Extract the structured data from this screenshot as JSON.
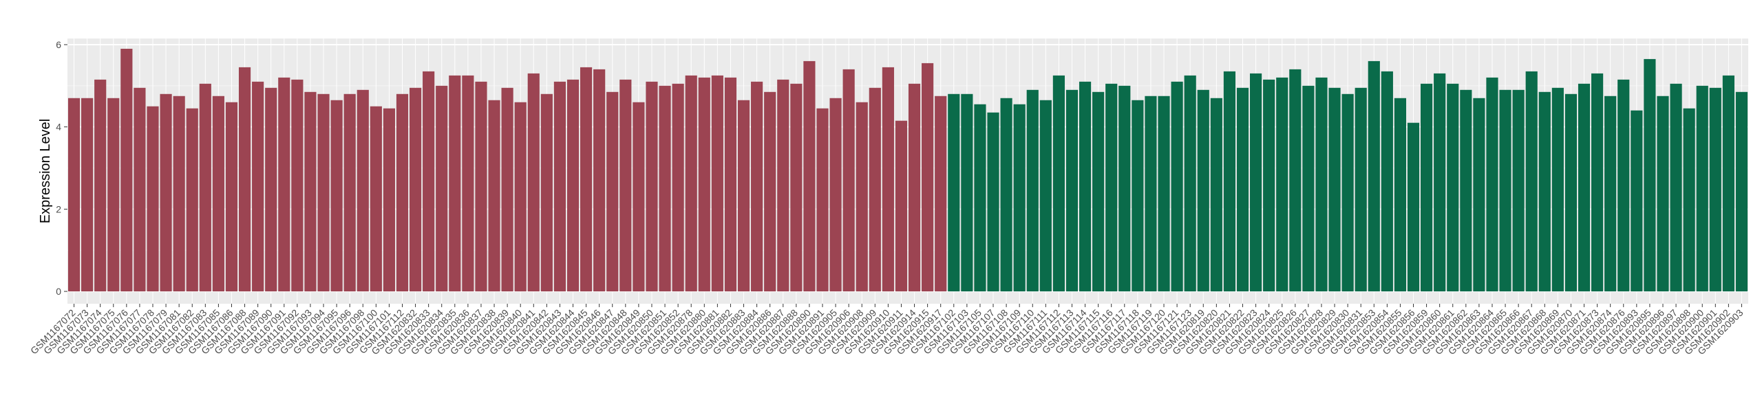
{
  "chart_data": {
    "type": "bar",
    "title": "",
    "xlabel": "",
    "ylabel": "Expression Level",
    "ylim": [
      -0.3,
      6.15
    ],
    "yticks": [
      0,
      2,
      4,
      6
    ],
    "grid": true,
    "legend": "none",
    "colors": {
      "group_a": "#9c4452",
      "group_b": "#0a6b4a",
      "panel_bg": "#ebebeb",
      "grid_major": "#ffffff",
      "grid_minor": "#f5f5f5"
    },
    "categories": [
      "GSM1167072",
      "GSM1167073",
      "GSM1167074",
      "GSM1167075",
      "GSM1167076",
      "GSM1167077",
      "GSM1167078",
      "GSM1167079",
      "GSM1167081",
      "GSM1167082",
      "GSM1167083",
      "GSM1167085",
      "GSM1167086",
      "GSM1167088",
      "GSM1167089",
      "GSM1167090",
      "GSM1167091",
      "GSM1167092",
      "GSM1167093",
      "GSM1167094",
      "GSM1167095",
      "GSM1167096",
      "GSM1167098",
      "GSM1167100",
      "GSM1167101",
      "GSM1167112",
      "GSM1620832",
      "GSM1620833",
      "GSM1620834",
      "GSM1620835",
      "GSM1620836",
      "GSM1620837",
      "GSM1620838",
      "GSM1620839",
      "GSM1620840",
      "GSM1620841",
      "GSM1620842",
      "GSM1620843",
      "GSM1620844",
      "GSM1620845",
      "GSM1620846",
      "GSM1620847",
      "GSM1620848",
      "GSM1620849",
      "GSM1620850",
      "GSM1620851",
      "GSM1620852",
      "GSM1620878",
      "GSM1620880",
      "GSM1620881",
      "GSM1620882",
      "GSM1620883",
      "GSM1620884",
      "GSM1620886",
      "GSM1620887",
      "GSM1620888",
      "GSM1620890",
      "GSM1620891",
      "GSM1620905",
      "GSM1620906",
      "GSM1620908",
      "GSM1620909",
      "GSM1620910",
      "GSM1620911",
      "GSM1620914",
      "GSM1620915",
      "GSM1620917",
      "GSM1167102",
      "GSM1167103",
      "GSM1167105",
      "GSM1167107",
      "GSM1167108",
      "GSM1167109",
      "GSM1167110",
      "GSM1167111",
      "GSM1167112",
      "GSM1167113",
      "GSM1167114",
      "GSM1167115",
      "GSM1167116",
      "GSM1167117",
      "GSM1167118",
      "GSM1167119",
      "GSM1167120",
      "GSM1167121",
      "GSM1167123",
      "GSM1620819",
      "GSM1620820",
      "GSM1620821",
      "GSM1620822",
      "GSM1620823",
      "GSM1620824",
      "GSM1620825",
      "GSM1620826",
      "GSM1620827",
      "GSM1620828",
      "GSM1620829",
      "GSM1620830",
      "GSM1620831",
      "GSM1620853",
      "GSM1620854",
      "GSM1620855",
      "GSM1620856",
      "GSM1620859",
      "GSM1620860",
      "GSM1620861",
      "GSM1620862",
      "GSM1620863",
      "GSM1620864",
      "GSM1620865",
      "GSM1620866",
      "GSM1620867",
      "GSM1620868",
      "GSM1620869",
      "GSM1620870",
      "GSM1620871",
      "GSM1620873",
      "GSM1620874",
      "GSM1620876",
      "GSM1620893",
      "GSM1620895",
      "GSM1620896",
      "GSM1620897",
      "GSM1620898",
      "GSM1620900",
      "GSM1620901",
      "GSM1620902",
      "GSM1620903"
    ],
    "series": [
      {
        "values": [
          4.7,
          4.7,
          5.15,
          4.7,
          5.9,
          4.95,
          4.5,
          4.8,
          4.75,
          4.45,
          5.05,
          4.75,
          4.6,
          5.45,
          5.1,
          4.95,
          5.2,
          5.15,
          4.85,
          4.8,
          4.65,
          4.8,
          4.9,
          4.5,
          4.45,
          4.8,
          4.95,
          5.35,
          5.0,
          5.25,
          5.25,
          5.1,
          4.65,
          4.95,
          4.6,
          5.3,
          4.8,
          5.1,
          5.15,
          5.45,
          5.4,
          4.85,
          5.15,
          4.6,
          5.1,
          5.0,
          5.05,
          5.25,
          5.2,
          5.25,
          5.2,
          4.65,
          5.1,
          4.85,
          5.15,
          5.05,
          5.6,
          4.45,
          4.7,
          5.4,
          4.6,
          4.95,
          5.45,
          4.15,
          5.05,
          5.55,
          4.75,
          4.8,
          4.8,
          4.55,
          4.35,
          4.7,
          4.55,
          4.9,
          4.65,
          5.25,
          4.9,
          5.1,
          4.85,
          5.05,
          5.0,
          4.65,
          4.75,
          4.75,
          5.1,
          5.25,
          4.9,
          4.7,
          5.35,
          4.95,
          5.3,
          5.15,
          5.2,
          5.4,
          5.0,
          5.2,
          4.95,
          4.8,
          4.95,
          5.6,
          5.35,
          4.7,
          4.1,
          5.05,
          5.3,
          5.05,
          4.9,
          4.7,
          5.2,
          4.9,
          4.9,
          5.35,
          4.85,
          4.95,
          4.8,
          5.05,
          5.3,
          4.75,
          5.15,
          4.4,
          5.65,
          4.75,
          5.05,
          4.45,
          5.0,
          4.95,
          5.25,
          4.85
        ]
      }
    ],
    "group_a_count": 67
  }
}
